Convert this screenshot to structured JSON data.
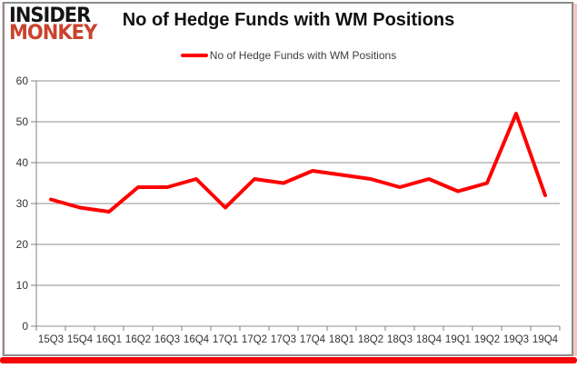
{
  "brand": {
    "line1": "INSIDER",
    "line2": "MONKEY",
    "line1_color": "#151515",
    "line2_color": "#c9432d"
  },
  "header": {
    "title": "No of Hedge Funds with WM Positions"
  },
  "legend": {
    "label": "No of Hedge Funds with WM Positions",
    "marker_color": "#ff0000"
  },
  "frame": {
    "border_color": "#8c8c8c",
    "bottom_bar_color": "#f50505",
    "right_edge_color": "#f2c6c1"
  },
  "chart_data": {
    "type": "line",
    "title": "No of Hedge Funds with WM Positions",
    "categories": [
      "15Q3",
      "15Q4",
      "16Q1",
      "16Q2",
      "16Q3",
      "16Q4",
      "17Q1",
      "17Q2",
      "17Q3",
      "17Q4",
      "18Q1",
      "18Q2",
      "18Q3",
      "18Q4",
      "19Q1",
      "19Q2",
      "19Q3",
      "19Q4"
    ],
    "series": [
      {
        "name": "No of Hedge Funds with WM Positions",
        "color": "#ff0000",
        "line_width": 4,
        "values": [
          31,
          29,
          28,
          34,
          34,
          36,
          29,
          36,
          35,
          38,
          37,
          36,
          34,
          36,
          33,
          35,
          52,
          32
        ]
      }
    ],
    "xlabel": "",
    "ylabel": "",
    "ylim": [
      0,
      60
    ],
    "ytick_step": 10,
    "yticks": [
      0,
      10,
      20,
      30,
      40,
      50,
      60
    ],
    "grid": true,
    "gridline_color": "#8f8f8f",
    "axis_color": "#808080",
    "legend_position": "top-center"
  }
}
